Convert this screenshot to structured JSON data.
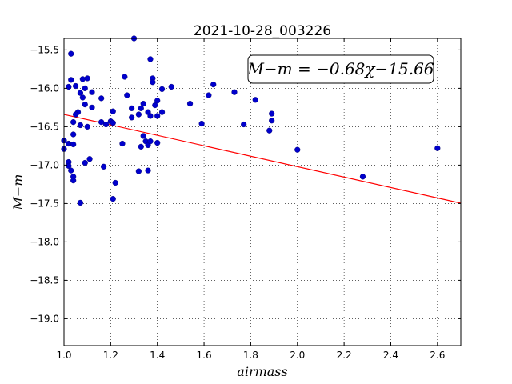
{
  "chart_data": {
    "type": "scatter",
    "title": "2021-10-28_003226",
    "xlabel": "airmass",
    "ylabel": "M−m",
    "xlim": [
      1.0,
      2.7
    ],
    "ylim": [
      -15.35,
      -19.35
    ],
    "y_inverted": true,
    "grid": true,
    "xticks": [
      1.0,
      1.2,
      1.4,
      1.6,
      1.8,
      2.0,
      2.2,
      2.4,
      2.6
    ],
    "xtick_labels": [
      "1.0",
      "1.2",
      "1.4",
      "1.6",
      "1.8",
      "2.0",
      "2.2",
      "2.4",
      "2.6"
    ],
    "yticks": [
      -15.5,
      -16.0,
      -16.5,
      -17.0,
      -17.5,
      -18.0,
      -18.5,
      -19.0
    ],
    "ytick_labels": [
      "−15.5",
      "−16.0",
      "−16.5",
      "−17.0",
      "−17.5",
      "−18.0",
      "−18.5",
      "−19.0"
    ],
    "annotation": "M−m = −0.68χ−15.66",
    "fit": {
      "slope": -0.68,
      "intercept": -15.66,
      "color": "#ff0000"
    },
    "point_color": "#0000cc",
    "points": [
      [
        1.0,
        -16.68
      ],
      [
        1.0,
        -16.79
      ],
      [
        1.02,
        -15.98
      ],
      [
        1.03,
        -15.89
      ],
      [
        1.03,
        -15.55
      ],
      [
        1.05,
        -15.97
      ],
      [
        1.07,
        -16.06
      ],
      [
        1.08,
        -15.88
      ],
      [
        1.09,
        -16.0
      ],
      [
        1.1,
        -15.87
      ],
      [
        1.08,
        -16.12
      ],
      [
        1.09,
        -16.21
      ],
      [
        1.12,
        -16.05
      ],
      [
        1.12,
        -16.25
      ],
      [
        1.06,
        -16.31
      ],
      [
        1.05,
        -16.34
      ],
      [
        1.04,
        -16.44
      ],
      [
        1.07,
        -16.48
      ],
      [
        1.1,
        -16.5
      ],
      [
        1.04,
        -16.6
      ],
      [
        1.02,
        -16.72
      ],
      [
        1.04,
        -16.73
      ],
      [
        1.02,
        -16.96
      ],
      [
        1.02,
        -17.01
      ],
      [
        1.03,
        -17.07
      ],
      [
        1.04,
        -17.15
      ],
      [
        1.04,
        -17.2
      ],
      [
        1.07,
        -17.49
      ],
      [
        1.09,
        -16.97
      ],
      [
        1.11,
        -16.92
      ],
      [
        1.16,
        -16.13
      ],
      [
        1.16,
        -16.44
      ],
      [
        1.18,
        -16.47
      ],
      [
        1.2,
        -16.43
      ],
      [
        1.21,
        -16.3
      ],
      [
        1.21,
        -16.45
      ],
      [
        1.17,
        -17.02
      ],
      [
        1.22,
        -17.23
      ],
      [
        1.21,
        -17.44
      ],
      [
        1.26,
        -15.85
      ],
      [
        1.27,
        -16.09
      ],
      [
        1.29,
        -16.26
      ],
      [
        1.29,
        -16.38
      ],
      [
        1.3,
        -15.35
      ],
      [
        1.32,
        -16.34
      ],
      [
        1.33,
        -16.26
      ],
      [
        1.34,
        -16.2
      ],
      [
        1.36,
        -16.31
      ],
      [
        1.34,
        -16.62
      ],
      [
        1.35,
        -16.69
      ],
      [
        1.33,
        -16.76
      ],
      [
        1.32,
        -17.08
      ],
      [
        1.36,
        -17.07
      ],
      [
        1.36,
        -16.74
      ],
      [
        1.37,
        -16.69
      ],
      [
        1.37,
        -16.36
      ],
      [
        1.37,
        -15.62
      ],
      [
        1.38,
        -15.87
      ],
      [
        1.38,
        -15.92
      ],
      [
        1.39,
        -16.22
      ],
      [
        1.4,
        -16.16
      ],
      [
        1.4,
        -16.36
      ],
      [
        1.42,
        -16.31
      ],
      [
        1.42,
        -16.01
      ],
      [
        1.4,
        -16.71
      ],
      [
        1.46,
        -15.98
      ],
      [
        1.54,
        -16.2
      ],
      [
        1.59,
        -16.46
      ],
      [
        1.62,
        -16.09
      ],
      [
        1.64,
        -15.95
      ],
      [
        1.73,
        -16.05
      ],
      [
        1.77,
        -16.47
      ],
      [
        1.82,
        -16.15
      ],
      [
        1.88,
        -16.55
      ],
      [
        1.89,
        -16.42
      ],
      [
        1.89,
        -16.33
      ],
      [
        2.0,
        -16.8
      ],
      [
        2.28,
        -17.15
      ],
      [
        2.6,
        -16.78
      ],
      [
        1.25,
        -16.72
      ]
    ]
  }
}
